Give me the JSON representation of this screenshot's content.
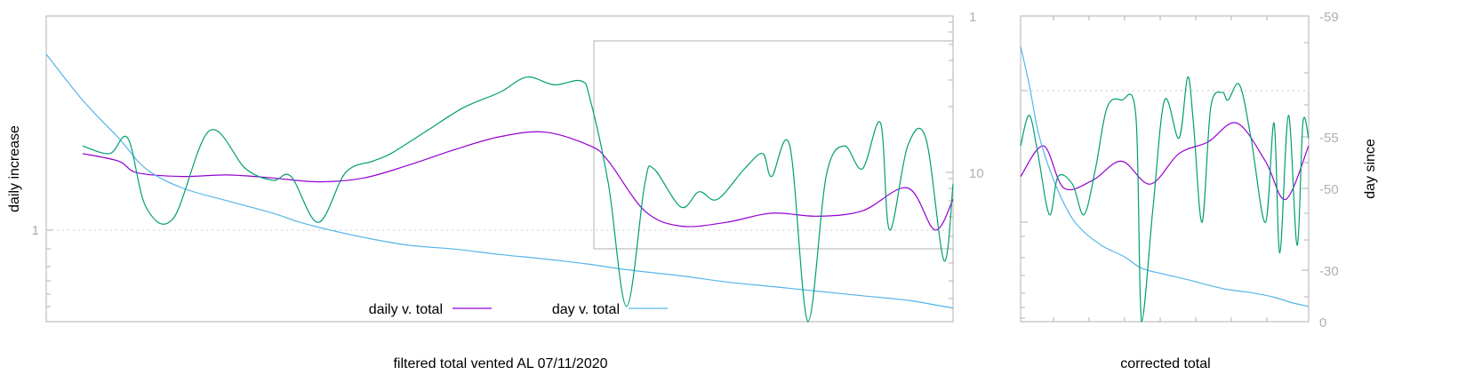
{
  "chart_data": [
    {
      "type": "line",
      "ylabel_left": "daily increase",
      "ylabel_right": "",
      "xlabel": "filtered total vented AL 07/11/2020",
      "left_ticks": [
        "1"
      ],
      "right_ticks": [
        "1",
        "10"
      ],
      "legend": {
        "placement": "bottom-center",
        "entries": [
          {
            "label": "daily v. total",
            "color": "#9400d3"
          },
          {
            "label": "day v. total",
            "color": "#56b4e9"
          }
        ]
      },
      "grid": "horizontal dotted at 1",
      "x": [
        0,
        0.04,
        0.08,
        0.11,
        0.15,
        0.2,
        0.25,
        0.3,
        0.35,
        0.4,
        0.45,
        0.5,
        0.55,
        0.6,
        0.65,
        0.7,
        0.75,
        0.8,
        0.85,
        0.9,
        0.95,
        0.98,
        1
      ],
      "series": [
        {
          "name": "daily v. total",
          "color": "#9400d3",
          "x": [
            0.04,
            0.08,
            0.1,
            0.15,
            0.2,
            0.25,
            0.3,
            0.35,
            0.4,
            0.45,
            0.5,
            0.55,
            0.6,
            0.62,
            0.66,
            0.7,
            0.75,
            0.8,
            0.85,
            0.9,
            0.95,
            0.98,
            1
          ],
          "values": [
            2.2,
            2.1,
            1.95,
            1.9,
            1.92,
            1.88,
            1.83,
            1.88,
            2.05,
            2.25,
            2.42,
            2.48,
            2.3,
            2.1,
            1.45,
            1.25,
            1.3,
            1.42,
            1.38,
            1.45,
            1.75,
            1.2,
            1.6
          ]
        },
        {
          "name": "day v. total",
          "color": "#56b4e9",
          "x": [
            0,
            0.04,
            0.08,
            0.11,
            0.15,
            0.2,
            0.25,
            0.28,
            0.32,
            0.36,
            0.4,
            0.45,
            0.5,
            0.55,
            0.6,
            0.64,
            0.7,
            0.75,
            0.8,
            0.85,
            0.9,
            0.95,
            0.98,
            1
          ],
          "values": [
            3.5,
            2.9,
            2.4,
            2.0,
            1.75,
            1.58,
            1.42,
            1.3,
            1.18,
            1.08,
            1.0,
            0.95,
            0.88,
            0.82,
            0.75,
            0.68,
            0.6,
            0.52,
            0.46,
            0.4,
            0.34,
            0.28,
            0.22,
            0.18
          ]
        },
        {
          "name": "",
          "color": "#009e73",
          "x": [
            0.04,
            0.07,
            0.09,
            0.11,
            0.14,
            0.18,
            0.22,
            0.25,
            0.27,
            0.3,
            0.33,
            0.36,
            0.38,
            0.42,
            0.46,
            0.5,
            0.53,
            0.56,
            0.59,
            0.6,
            0.62,
            0.64,
            0.66,
            0.67,
            0.7,
            0.72,
            0.74,
            0.77,
            0.79,
            0.8,
            0.82,
            0.84,
            0.86,
            0.88,
            0.9,
            0.92,
            0.93,
            0.95,
            0.97,
            0.99,
            1
          ],
          "values": [
            2.3,
            2.2,
            2.4,
            1.5,
            1.35,
            2.5,
            2.0,
            1.85,
            1.9,
            1.3,
            1.95,
            2.1,
            2.2,
            2.5,
            2.8,
            3.0,
            3.2,
            3.1,
            3.15,
            2.9,
            1.8,
            0.2,
            1.8,
            2.0,
            1.5,
            1.7,
            1.6,
            2.0,
            2.2,
            1.9,
            2.3,
            -0.3,
            1.9,
            2.3,
            2.0,
            2.6,
            1.2,
            2.3,
            2.4,
            0.8,
            1.8
          ]
        }
      ],
      "ylim": [
        0,
        4
      ]
    },
    {
      "type": "line",
      "xlabel": "corrected total",
      "ylabel_right": "day since",
      "right_ticks": [
        "-59",
        "-55",
        "-50",
        "-30",
        "0"
      ],
      "grid": "horizontal dotted at 1",
      "series": [
        {
          "name": "daily v. total",
          "color": "#9400d3",
          "x": [
            0,
            0.08,
            0.15,
            0.25,
            0.35,
            0.45,
            0.55,
            0.65,
            0.75,
            0.85,
            0.92,
            1
          ],
          "values": [
            1.9,
            2.3,
            1.75,
            1.85,
            2.1,
            1.8,
            2.2,
            2.35,
            2.6,
            2.1,
            1.6,
            2.3
          ]
        },
        {
          "name": "day v. total",
          "color": "#56b4e9",
          "x": [
            0,
            0.03,
            0.06,
            0.1,
            0.15,
            0.2,
            0.28,
            0.36,
            0.42,
            0.5,
            0.58,
            0.65,
            0.72,
            0.8,
            0.88,
            0.94,
            1
          ],
          "values": [
            3.6,
            3.1,
            2.5,
            2.0,
            1.55,
            1.25,
            1.0,
            0.85,
            0.7,
            0.62,
            0.55,
            0.48,
            0.42,
            0.38,
            0.32,
            0.25,
            0.2
          ]
        },
        {
          "name": "",
          "color": "#009e73",
          "x": [
            0,
            0.03,
            0.06,
            0.1,
            0.13,
            0.18,
            0.22,
            0.26,
            0.3,
            0.35,
            0.4,
            0.42,
            0.46,
            0.5,
            0.55,
            0.58,
            0.6,
            0.63,
            0.66,
            0.7,
            0.72,
            0.76,
            0.8,
            0.85,
            0.88,
            0.9,
            0.93,
            0.96,
            0.98,
            1
          ],
          "values": [
            2.3,
            2.7,
            2.2,
            1.4,
            1.9,
            1.8,
            1.4,
            2.0,
            2.8,
            2.9,
            2.7,
            -0.4,
            1.5,
            2.9,
            2.4,
            3.2,
            2.6,
            1.3,
            2.8,
            3.0,
            2.9,
            3.1,
            2.4,
            1.3,
            2.6,
            0.9,
            2.7,
            1.0,
            2.6,
            2.4
          ]
        }
      ],
      "ylim": [
        0,
        4
      ]
    }
  ]
}
